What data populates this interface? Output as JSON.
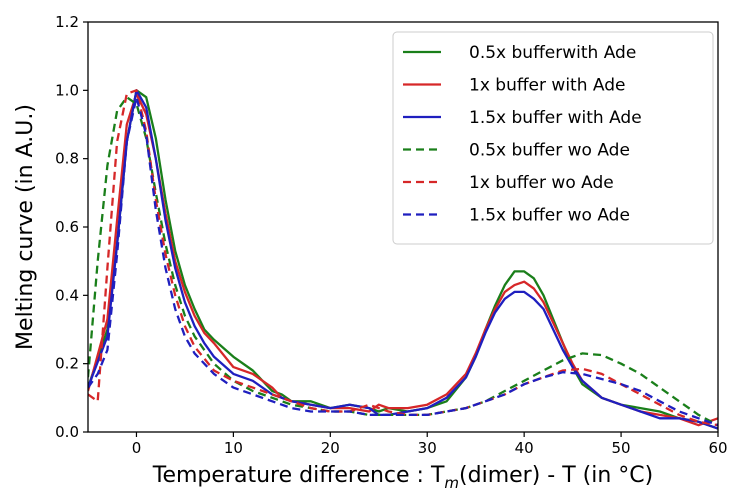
{
  "chart_data": {
    "type": "line",
    "title": "",
    "xlabel_main": "Temperature difference : T",
    "xlabel_sub": "m",
    "xlabel_rest": "(dimer) - T (in °C)",
    "ylabel": "Melting curve (in A.U.)",
    "xlim": [
      -5,
      60
    ],
    "ylim": [
      0.0,
      1.2
    ],
    "x_ticks": [
      0,
      10,
      20,
      30,
      40,
      50,
      60
    ],
    "y_ticks": [
      0.0,
      0.2,
      0.4,
      0.6,
      0.8,
      1.0,
      1.2
    ],
    "x_tick_labels": [
      "0",
      "10",
      "20",
      "30",
      "40",
      "50",
      "60"
    ],
    "y_tick_labels": [
      "0.0",
      "0.2",
      "0.4",
      "0.6",
      "0.8",
      "1.0",
      "1.2"
    ],
    "grid": false,
    "legend_position": "top-right",
    "series": [
      {
        "name": "0.5x bufferwith Ade",
        "color": "#1a7f1a",
        "dash": "solid",
        "x": [
          -5,
          -3,
          -2,
          -1,
          0,
          1,
          2,
          3,
          4,
          5,
          6,
          7,
          8,
          10,
          12,
          14,
          15,
          16,
          18,
          20,
          22,
          24,
          25,
          26,
          28,
          30,
          32,
          34,
          35,
          36,
          37,
          38,
          39,
          40,
          41,
          42,
          43,
          44,
          45,
          46,
          48,
          50,
          52,
          54,
          56,
          58,
          60
        ],
        "y": [
          0.13,
          0.3,
          0.55,
          0.85,
          1.0,
          0.98,
          0.86,
          0.68,
          0.53,
          0.43,
          0.36,
          0.3,
          0.27,
          0.22,
          0.18,
          0.12,
          0.11,
          0.09,
          0.09,
          0.07,
          0.08,
          0.07,
          0.06,
          0.07,
          0.06,
          0.07,
          0.09,
          0.16,
          0.22,
          0.3,
          0.37,
          0.43,
          0.47,
          0.47,
          0.45,
          0.4,
          0.33,
          0.26,
          0.19,
          0.14,
          0.1,
          0.08,
          0.07,
          0.06,
          0.04,
          0.03,
          0.01
        ]
      },
      {
        "name": "1x buffer with Ade",
        "color": "#d62728",
        "dash": "solid",
        "x": [
          -5,
          -3,
          -2,
          -1,
          0,
          1,
          2,
          3,
          4,
          5,
          6,
          7,
          8,
          10,
          12,
          14,
          15,
          16,
          18,
          20,
          22,
          24,
          25,
          26,
          28,
          30,
          32,
          34,
          35,
          36,
          37,
          38,
          39,
          40,
          41,
          42,
          43,
          44,
          45,
          46,
          48,
          50,
          52,
          54,
          56,
          58,
          60
        ],
        "y": [
          0.12,
          0.33,
          0.62,
          0.9,
          0.99,
          0.93,
          0.8,
          0.64,
          0.5,
          0.41,
          0.34,
          0.29,
          0.26,
          0.19,
          0.17,
          0.13,
          0.1,
          0.09,
          0.08,
          0.07,
          0.07,
          0.06,
          0.08,
          0.07,
          0.07,
          0.08,
          0.11,
          0.17,
          0.23,
          0.3,
          0.36,
          0.41,
          0.43,
          0.44,
          0.42,
          0.38,
          0.32,
          0.26,
          0.2,
          0.15,
          0.1,
          0.08,
          0.06,
          0.05,
          0.04,
          0.02,
          0.04
        ]
      },
      {
        "name": "1.5x buffer with Ade",
        "color": "#1f1fbf",
        "dash": "solid",
        "x": [
          -5,
          -3,
          -2,
          -1,
          0,
          1,
          2,
          3,
          4,
          5,
          6,
          7,
          8,
          10,
          12,
          14,
          15,
          16,
          18,
          20,
          22,
          24,
          25,
          26,
          28,
          30,
          32,
          34,
          35,
          36,
          37,
          38,
          39,
          40,
          41,
          42,
          43,
          44,
          45,
          46,
          48,
          50,
          52,
          54,
          56,
          58,
          60
        ],
        "y": [
          0.13,
          0.28,
          0.55,
          0.85,
          1.0,
          0.95,
          0.8,
          0.62,
          0.48,
          0.38,
          0.31,
          0.26,
          0.22,
          0.17,
          0.15,
          0.11,
          0.1,
          0.09,
          0.08,
          0.07,
          0.08,
          0.07,
          0.05,
          0.05,
          0.06,
          0.07,
          0.1,
          0.16,
          0.22,
          0.29,
          0.35,
          0.39,
          0.41,
          0.41,
          0.39,
          0.36,
          0.3,
          0.24,
          0.19,
          0.15,
          0.1,
          0.08,
          0.06,
          0.04,
          0.04,
          0.03,
          0.01
        ]
      },
      {
        "name": "0.5x buffer wo Ade",
        "color": "#1a7f1a",
        "dash": "dashed",
        "x": [
          -5,
          -4,
          -3,
          -2,
          -1,
          0,
          1,
          2,
          3,
          4,
          5,
          6,
          8,
          10,
          12,
          14,
          16,
          18,
          20,
          22,
          24,
          26,
          28,
          30,
          32,
          34,
          36,
          38,
          40,
          42,
          44,
          46,
          48,
          50,
          52,
          54,
          56,
          58,
          60
        ],
        "y": [
          0.16,
          0.5,
          0.78,
          0.94,
          0.98,
          0.96,
          0.86,
          0.7,
          0.55,
          0.43,
          0.34,
          0.28,
          0.2,
          0.15,
          0.12,
          0.1,
          0.08,
          0.07,
          0.06,
          0.06,
          0.05,
          0.05,
          0.05,
          0.05,
          0.06,
          0.07,
          0.09,
          0.12,
          0.15,
          0.18,
          0.21,
          0.23,
          0.225,
          0.2,
          0.17,
          0.13,
          0.09,
          0.05,
          0.02
        ]
      },
      {
        "name": "1x buffer wo Ade",
        "color": "#d62728",
        "dash": "dashed",
        "x": [
          -5,
          -4,
          -3,
          -2,
          -1,
          0,
          1,
          2,
          3,
          4,
          5,
          6,
          8,
          10,
          12,
          14,
          16,
          18,
          20,
          22,
          24,
          26,
          28,
          30,
          32,
          34,
          36,
          38,
          40,
          42,
          44,
          46,
          48,
          50,
          52,
          54,
          56,
          58,
          60
        ],
        "y": [
          0.11,
          0.09,
          0.48,
          0.85,
          0.99,
          1.0,
          0.88,
          0.68,
          0.52,
          0.4,
          0.31,
          0.25,
          0.18,
          0.15,
          0.13,
          0.11,
          0.09,
          0.07,
          0.06,
          0.06,
          0.08,
          0.06,
          0.05,
          0.05,
          0.06,
          0.07,
          0.09,
          0.11,
          0.14,
          0.16,
          0.18,
          0.185,
          0.17,
          0.14,
          0.11,
          0.08,
          0.05,
          0.03,
          0.02
        ]
      },
      {
        "name": "1.5x buffer wo Ade",
        "color": "#1f1fbf",
        "dash": "dashed",
        "x": [
          -5,
          -4,
          -3,
          -2,
          -1,
          0,
          1,
          2,
          3,
          4,
          5,
          6,
          8,
          10,
          12,
          14,
          16,
          18,
          20,
          22,
          24,
          26,
          28,
          30,
          32,
          34,
          36,
          38,
          40,
          42,
          44,
          46,
          48,
          50,
          52,
          54,
          56,
          58,
          60
        ],
        "y": [
          0.13,
          0.17,
          0.24,
          0.52,
          0.85,
          0.98,
          0.87,
          0.65,
          0.48,
          0.36,
          0.28,
          0.23,
          0.17,
          0.13,
          0.11,
          0.09,
          0.07,
          0.06,
          0.06,
          0.06,
          0.05,
          0.05,
          0.05,
          0.05,
          0.06,
          0.07,
          0.09,
          0.11,
          0.14,
          0.16,
          0.175,
          0.17,
          0.155,
          0.14,
          0.12,
          0.09,
          0.06,
          0.04,
          0.02
        ]
      }
    ]
  }
}
